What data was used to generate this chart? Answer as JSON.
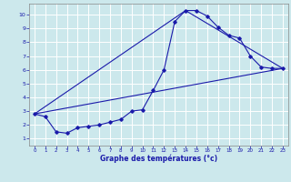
{
  "xlabel": "Graphe des températures (°c)",
  "xlim": [
    -0.5,
    23.5
  ],
  "ylim": [
    0.5,
    10.8
  ],
  "xticks": [
    0,
    1,
    2,
    3,
    4,
    5,
    6,
    7,
    8,
    9,
    10,
    11,
    12,
    13,
    14,
    15,
    16,
    17,
    18,
    19,
    20,
    21,
    22,
    23
  ],
  "yticks": [
    1,
    2,
    3,
    4,
    5,
    6,
    7,
    8,
    9,
    10
  ],
  "bg_color": "#cce8ec",
  "line_color": "#1a1aaa",
  "grid_color": "#ffffff",
  "line1_x": [
    0,
    1,
    2,
    3,
    4,
    5,
    6,
    7,
    8,
    9,
    10,
    11,
    12,
    13,
    14,
    15,
    16,
    17,
    18,
    19,
    20,
    21,
    22,
    23
  ],
  "line1_y": [
    2.8,
    2.6,
    1.5,
    1.4,
    1.8,
    1.9,
    2.0,
    2.2,
    2.4,
    3.0,
    3.1,
    4.5,
    6.0,
    9.5,
    10.3,
    10.3,
    9.9,
    9.1,
    8.5,
    8.3,
    7.0,
    6.2,
    6.1,
    6.1
  ],
  "line2_x": [
    0,
    23
  ],
  "line2_y": [
    2.8,
    6.1
  ],
  "line3_x": [
    0,
    14,
    23
  ],
  "line3_y": [
    2.8,
    10.3,
    6.1
  ]
}
